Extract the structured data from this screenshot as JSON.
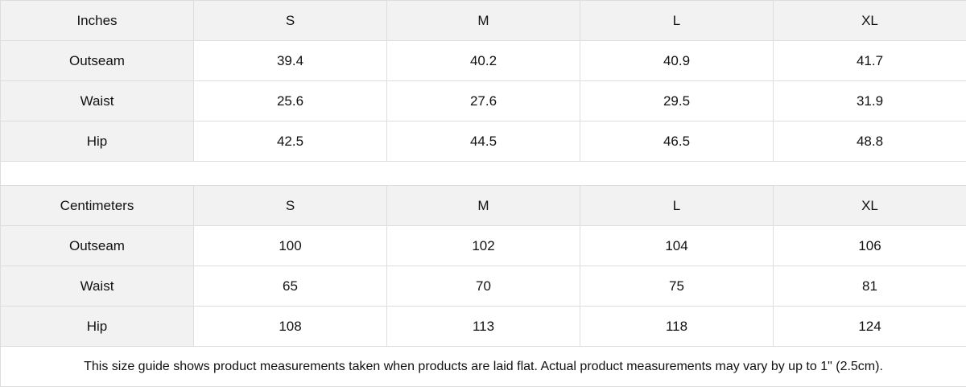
{
  "inches": {
    "header": [
      "Inches",
      "S",
      "M",
      "L",
      "XL"
    ],
    "rows": [
      [
        "Outseam",
        "39.4",
        "40.2",
        "40.9",
        "41.7"
      ],
      [
        "Waist",
        "25.6",
        "27.6",
        "29.5",
        "31.9"
      ],
      [
        "Hip",
        "42.5",
        "44.5",
        "46.5",
        "48.8"
      ]
    ]
  },
  "centimeters": {
    "header": [
      "Centimeters",
      "S",
      "M",
      "L",
      "XL"
    ],
    "rows": [
      [
        "Outseam",
        "100",
        "102",
        "104",
        "106"
      ],
      [
        "Waist",
        "65",
        "70",
        "75",
        "81"
      ],
      [
        "Hip",
        "108",
        "113",
        "118",
        "124"
      ]
    ]
  },
  "note": "This size guide shows product measurements taken when products are laid flat.  Actual product measurements may vary by up to 1\" (2.5cm).",
  "colors": {
    "header_bg": "#f2f2f2",
    "border": "#dddddd"
  }
}
